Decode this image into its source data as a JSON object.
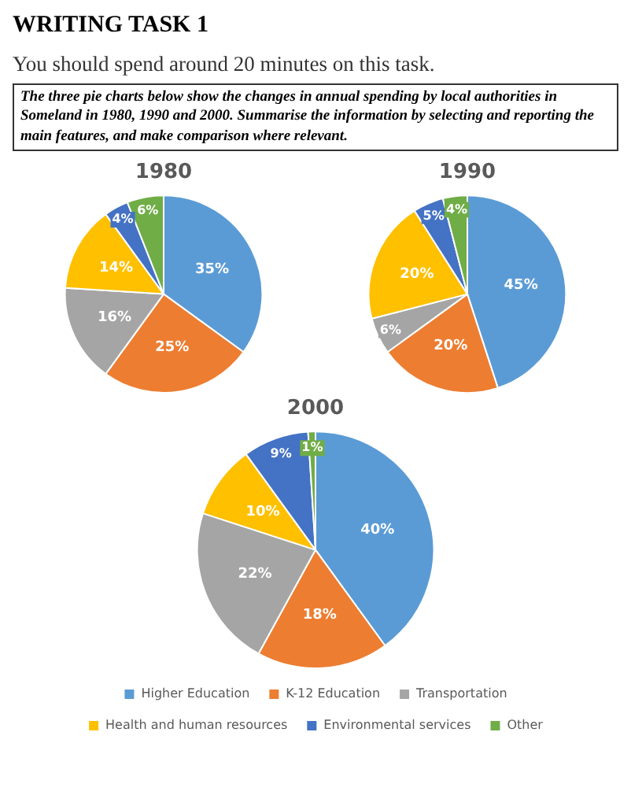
{
  "chart_data": [
    {
      "type": "pie",
      "title": "1980",
      "annotations": [
        "WRITING TASK 1",
        "You should spend around 20 minutes on this task.",
        "The three pie charts below show the changes in annual spending by local authorities in Someland in 1980, 1990 and 2000. Summarise the information by selecting and reporting the main features, and make comparison where relevant."
      ],
      "categories": [
        null,
        null,
        null,
        null,
        null,
        null
      ],
      "values": [
        35,
        25,
        16,
        14,
        4,
        6
      ],
      "value_labels": [
        "35%",
        "25%",
        "16%",
        "14%",
        "4%",
        "6%"
      ],
      "colors": [
        "#5b9bd5",
        "#ed7d31",
        "#a5a5a5",
        "#ffc000",
        "#4472c4",
        "#70ad47"
      ]
    },
    {
      "type": "pie",
      "title": "1990",
      "categories": [
        null,
        null,
        null,
        null,
        null,
        null
      ],
      "values": [
        45,
        20,
        6,
        20,
        5,
        4
      ],
      "value_labels": [
        "45%",
        "20%",
        "6%",
        "20%",
        "5%",
        "4%"
      ],
      "colors": [
        "#5b9bd5",
        "#ed7d31",
        "#a5a5a5",
        "#ffc000",
        "#4472c4",
        "#70ad47"
      ]
    },
    {
      "type": "pie",
      "title": "2000",
      "legend": "bottom",
      "categories": [
        "Higher Education",
        "K-12 Education",
        "Transportation",
        "Health and human resources",
        "Environmental services",
        "Other"
      ],
      "values": [
        40,
        18,
        22,
        10,
        9,
        1
      ],
      "value_labels": [
        "40%",
        "18%",
        "22%",
        "10%",
        "9%",
        "1%"
      ],
      "colors": [
        "#5b9bd5",
        "#ed7d31",
        "#a5a5a5",
        "#ffc000",
        "#4472c4",
        "#70ad47"
      ]
    }
  ]
}
